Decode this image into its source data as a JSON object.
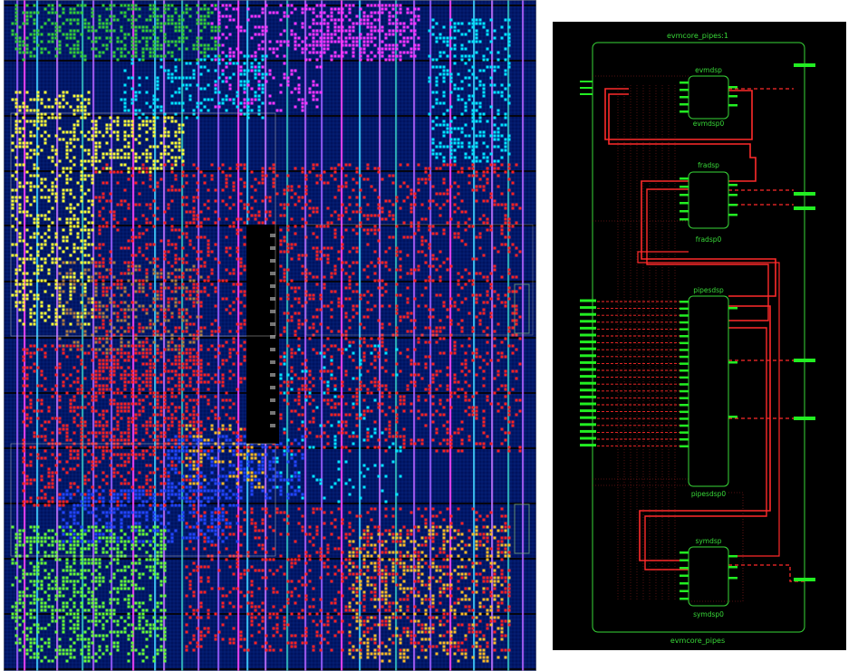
{
  "colors": {
    "fabric_bg": "#00135e",
    "schematic_bg": "#000000",
    "module_box": "#38d838",
    "net_red": "#ff2a2a",
    "pin_green": "#22ee22",
    "region_evmdsp": "#ff33ff",
    "region_fradsp": "#00e5ff",
    "region_yellow": "#ffff33",
    "region_green": "#33cc33",
    "region_bright_green": "#66ff33",
    "region_brown": "#b07a3a",
    "region_blue": "#2244ff",
    "region_orange": "#ffbb22",
    "region_red": "#ff2020"
  },
  "schematic": {
    "top_title": "evmcore_pipes:1",
    "bottom_title": "evmcore_pipes",
    "modules": [
      {
        "type": "evmdsp",
        "instance": "evmdsp0"
      },
      {
        "type": "fradsp",
        "instance": "fradsp0"
      },
      {
        "type": "pipesdsp",
        "instance": "pipesdsp0"
      },
      {
        "type": "symdsp",
        "instance": "symdsp0"
      }
    ]
  }
}
